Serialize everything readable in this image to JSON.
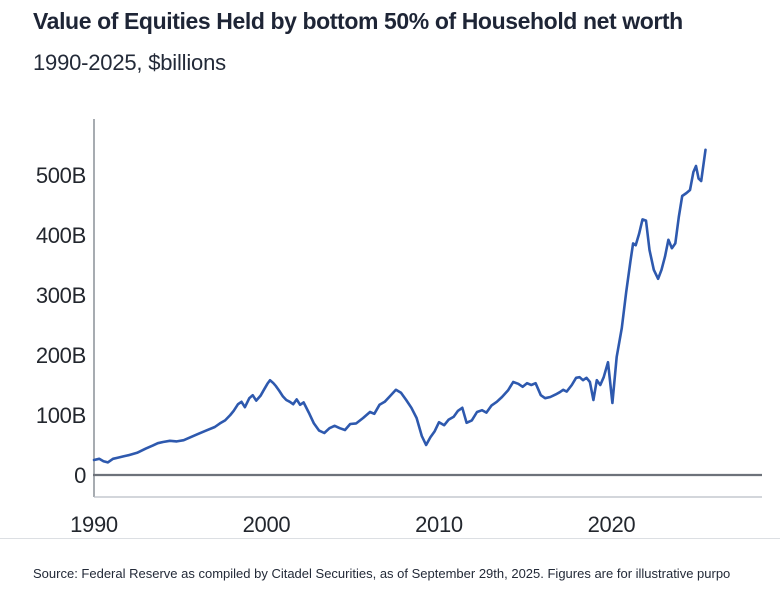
{
  "header": {
    "title": "Value of Equities Held by bottom 50% of Household net worth",
    "subtitle": "1990-2025, $billions"
  },
  "footer": {
    "source": "Source: Federal Reserve as compiled by Citadel Securities, as of September 29th, 2025. Figures are for illustrative purpo"
  },
  "colors": {
    "line": "#2e59ae",
    "title_text": "#1e2536",
    "tick_text": "#23272e",
    "y_axis_line": "#8a9097",
    "zero_line": "#6d727a",
    "x_axis_line": "#b9bec5",
    "divider": "#dcdfe3"
  },
  "chart_data": {
    "type": "line",
    "title": "Value of Equities Held by bottom 50% of Household net worth",
    "subtitle": "1990-2025, $billions",
    "xlabel": "",
    "ylabel": "$billions",
    "grid": false,
    "legend": "none",
    "line_color": "#2e59ae",
    "x_axis": {
      "min": 1990,
      "max": 2028.7,
      "ticks": [
        {
          "value": 1990,
          "label": "1990"
        },
        {
          "value": 2000,
          "label": "2000"
        },
        {
          "value": 2010,
          "label": "2010"
        },
        {
          "value": 2020,
          "label": "2020"
        }
      ]
    },
    "y_axis": {
      "min": 0,
      "max": 590,
      "ticks": [
        {
          "value": 0,
          "label": "0"
        },
        {
          "value": 100,
          "label": "100B"
        },
        {
          "value": 200,
          "label": "200B"
        },
        {
          "value": 300,
          "label": "300B"
        },
        {
          "value": 400,
          "label": "400B"
        },
        {
          "value": 500,
          "label": "500B"
        }
      ]
    },
    "series": [
      {
        "name": "Value of equities held by bottom 50% of households ($B)",
        "points": [
          [
            1990.0,
            25
          ],
          [
            1990.3,
            27
          ],
          [
            1990.55,
            23
          ],
          [
            1990.8,
            21
          ],
          [
            1991.1,
            27
          ],
          [
            1991.4,
            29
          ],
          [
            1991.7,
            31
          ],
          [
            1992.0,
            33
          ],
          [
            1992.5,
            37
          ],
          [
            1993.0,
            44
          ],
          [
            1993.4,
            49
          ],
          [
            1993.7,
            53
          ],
          [
            1994.0,
            55
          ],
          [
            1994.4,
            57
          ],
          [
            1994.8,
            56
          ],
          [
            1995.2,
            58
          ],
          [
            1995.6,
            63
          ],
          [
            1996.0,
            68
          ],
          [
            1996.5,
            74
          ],
          [
            1997.0,
            80
          ],
          [
            1997.3,
            86
          ],
          [
            1997.6,
            91
          ],
          [
            1997.9,
            100
          ],
          [
            1998.1,
            107
          ],
          [
            1998.35,
            118
          ],
          [
            1998.55,
            122
          ],
          [
            1998.75,
            113
          ],
          [
            1999.0,
            128
          ],
          [
            1999.2,
            133
          ],
          [
            1999.4,
            124
          ],
          [
            1999.65,
            132
          ],
          [
            1999.85,
            142
          ],
          [
            2000.05,
            152
          ],
          [
            2000.2,
            158
          ],
          [
            2000.4,
            153
          ],
          [
            2000.55,
            148
          ],
          [
            2000.75,
            140
          ],
          [
            2000.95,
            131
          ],
          [
            2001.15,
            125
          ],
          [
            2001.35,
            122
          ],
          [
            2001.55,
            118
          ],
          [
            2001.75,
            126
          ],
          [
            2001.95,
            117
          ],
          [
            2002.15,
            121
          ],
          [
            2002.45,
            104
          ],
          [
            2002.75,
            86
          ],
          [
            2003.05,
            74
          ],
          [
            2003.35,
            70
          ],
          [
            2003.65,
            78
          ],
          [
            2003.95,
            82
          ],
          [
            2004.25,
            78
          ],
          [
            2004.55,
            75
          ],
          [
            2004.85,
            85
          ],
          [
            2005.2,
            86
          ],
          [
            2005.6,
            95
          ],
          [
            2006.0,
            105
          ],
          [
            2006.25,
            102
          ],
          [
            2006.55,
            117
          ],
          [
            2006.85,
            122
          ],
          [
            2007.15,
            131
          ],
          [
            2007.5,
            142
          ],
          [
            2007.8,
            137
          ],
          [
            2008.1,
            125
          ],
          [
            2008.4,
            112
          ],
          [
            2008.7,
            95
          ],
          [
            2009.0,
            65
          ],
          [
            2009.25,
            50
          ],
          [
            2009.5,
            63
          ],
          [
            2009.75,
            73
          ],
          [
            2010.0,
            88
          ],
          [
            2010.3,
            83
          ],
          [
            2010.55,
            92
          ],
          [
            2010.85,
            97
          ],
          [
            2011.1,
            107
          ],
          [
            2011.35,
            112
          ],
          [
            2011.6,
            87
          ],
          [
            2011.9,
            91
          ],
          [
            2012.2,
            105
          ],
          [
            2012.5,
            108
          ],
          [
            2012.75,
            104
          ],
          [
            2013.05,
            116
          ],
          [
            2013.35,
            122
          ],
          [
            2013.65,
            130
          ],
          [
            2014.0,
            141
          ],
          [
            2014.3,
            155
          ],
          [
            2014.6,
            152
          ],
          [
            2014.85,
            147
          ],
          [
            2015.1,
            153
          ],
          [
            2015.35,
            150
          ],
          [
            2015.6,
            153
          ],
          [
            2015.9,
            133
          ],
          [
            2016.15,
            128
          ],
          [
            2016.45,
            130
          ],
          [
            2016.75,
            134
          ],
          [
            2017.0,
            138
          ],
          [
            2017.2,
            142
          ],
          [
            2017.4,
            139
          ],
          [
            2017.7,
            150
          ],
          [
            2017.95,
            162
          ],
          [
            2018.15,
            163
          ],
          [
            2018.35,
            158
          ],
          [
            2018.55,
            162
          ],
          [
            2018.75,
            155
          ],
          [
            2018.95,
            125
          ],
          [
            2019.15,
            158
          ],
          [
            2019.35,
            150
          ],
          [
            2019.55,
            163
          ],
          [
            2019.8,
            188
          ],
          [
            2020.05,
            120
          ],
          [
            2020.3,
            197
          ],
          [
            2020.6,
            245
          ],
          [
            2020.85,
            305
          ],
          [
            2021.1,
            357
          ],
          [
            2021.25,
            386
          ],
          [
            2021.4,
            383
          ],
          [
            2021.6,
            402
          ],
          [
            2021.8,
            426
          ],
          [
            2022.0,
            424
          ],
          [
            2022.2,
            375
          ],
          [
            2022.45,
            342
          ],
          [
            2022.7,
            327
          ],
          [
            2022.9,
            342
          ],
          [
            2023.1,
            364
          ],
          [
            2023.3,
            392
          ],
          [
            2023.5,
            378
          ],
          [
            2023.7,
            386
          ],
          [
            2023.9,
            430
          ],
          [
            2024.1,
            465
          ],
          [
            2024.35,
            470
          ],
          [
            2024.55,
            475
          ],
          [
            2024.75,
            505
          ],
          [
            2024.9,
            515
          ],
          [
            2025.05,
            494
          ],
          [
            2025.2,
            490
          ],
          [
            2025.45,
            542
          ]
        ]
      }
    ]
  }
}
